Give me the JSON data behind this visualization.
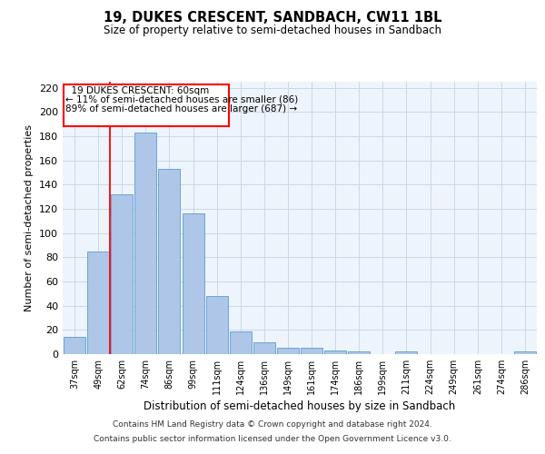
{
  "title": "19, DUKES CRESCENT, SANDBACH, CW11 1BL",
  "subtitle": "Size of property relative to semi-detached houses in Sandbach",
  "xlabel": "Distribution of semi-detached houses by size in Sandbach",
  "ylabel": "Number of semi-detached properties",
  "categories": [
    "37sqm",
    "49sqm",
    "62sqm",
    "74sqm",
    "86sqm",
    "99sqm",
    "111sqm",
    "124sqm",
    "136sqm",
    "149sqm",
    "161sqm",
    "174sqm",
    "186sqm",
    "199sqm",
    "211sqm",
    "224sqm",
    "249sqm",
    "261sqm",
    "274sqm",
    "286sqm"
  ],
  "values": [
    14,
    85,
    132,
    183,
    153,
    116,
    48,
    19,
    10,
    5,
    5,
    3,
    2,
    0,
    2,
    0,
    0,
    0,
    0,
    2
  ],
  "bar_color": "#aec6e8",
  "bar_edge_color": "#5b9bd5",
  "property_line_idx": 2,
  "property_sqm": "60sqm",
  "pct_smaller": 11,
  "count_smaller": 86,
  "pct_larger": 89,
  "count_larger": 687,
  "ylim": [
    0,
    225
  ],
  "yticks": [
    0,
    20,
    40,
    60,
    80,
    100,
    120,
    140,
    160,
    180,
    200,
    220
  ],
  "grid_color": "#c8d8e8",
  "background_color": "#eef4fb",
  "footer_line1": "Contains HM Land Registry data © Crown copyright and database right 2024.",
  "footer_line2": "Contains public sector information licensed under the Open Government Licence v3.0."
}
